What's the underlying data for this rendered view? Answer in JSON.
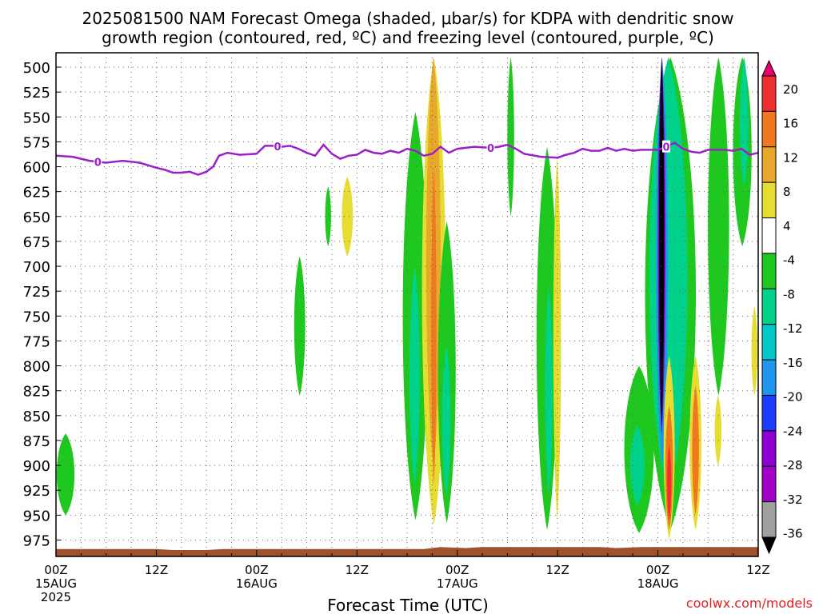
{
  "chart_data": {
    "type": "heatmap",
    "title_line1": "2025081500 NAM Forecast Omega (shaded, μbar/s) for KDPA with dendritic snow",
    "title_line2": "growth region (contoured, red, ºC) and freezing level (contoured, purple, ºC)",
    "xlabel": "Forecast Time (UTC)",
    "ylabel": "",
    "credit": "coolwx.com/models",
    "x_hours_range": [
      0,
      84
    ],
    "y_pressure_range": [
      975,
      500
    ],
    "y_ticks": [
      "500",
      "525",
      "550",
      "575",
      "600",
      "625",
      "650",
      "675",
      "700",
      "725",
      "750",
      "775",
      "800",
      "825",
      "850",
      "875",
      "900",
      "925",
      "950",
      "975"
    ],
    "x_ticks": [
      {
        "hour": 0,
        "label": "00Z",
        "sub": "15AUG",
        "sub2": "2025"
      },
      {
        "hour": 12,
        "label": "12Z",
        "sub": "",
        "sub2": ""
      },
      {
        "hour": 24,
        "label": "00Z",
        "sub": "16AUG",
        "sub2": ""
      },
      {
        "hour": 36,
        "label": "12Z",
        "sub": "",
        "sub2": ""
      },
      {
        "hour": 48,
        "label": "00Z",
        "sub": "17AUG",
        "sub2": ""
      },
      {
        "hour": 60,
        "label": "12Z",
        "sub": "",
        "sub2": ""
      },
      {
        "hour": 72,
        "label": "00Z",
        "sub": "18AUG",
        "sub2": ""
      },
      {
        "hour": 84,
        "label": "12Z",
        "sub": "",
        "sub2": ""
      }
    ],
    "grid": true,
    "colorbar": {
      "labels": [
        "20",
        "16",
        "12",
        "8",
        "4",
        "-4",
        "-8",
        "-12",
        "-16",
        "-20",
        "-24",
        "-28",
        "-32",
        "-36"
      ],
      "colors": [
        "#e8006e",
        "#f03030",
        "#f0781e",
        "#e8a82c",
        "#e6dc32",
        "#ffffff",
        "#1ec81e",
        "#00d28c",
        "#00c8c8",
        "#1e96f0",
        "#1e3cff",
        "#8c00d2",
        "#a000c8",
        "#a0a0a0",
        "#000000"
      ]
    },
    "freezing_level": {
      "label": "0",
      "color": "#9b20c8",
      "points": [
        [
          0,
          589
        ],
        [
          2,
          590
        ],
        [
          4,
          594
        ],
        [
          6,
          596
        ],
        [
          8,
          594
        ],
        [
          10,
          596
        ],
        [
          12,
          601
        ],
        [
          13,
          603
        ],
        [
          14,
          606
        ],
        [
          15,
          606
        ],
        [
          16,
          605
        ],
        [
          17,
          608
        ],
        [
          18,
          605
        ],
        [
          18.8,
          600
        ],
        [
          19.5,
          589
        ],
        [
          20.5,
          586
        ],
        [
          22,
          588
        ],
        [
          24,
          587
        ],
        [
          25,
          579
        ],
        [
          26,
          579
        ],
        [
          27,
          580
        ],
        [
          28,
          579
        ],
        [
          29,
          582
        ],
        [
          30,
          586
        ],
        [
          31,
          589
        ],
        [
          32,
          578
        ],
        [
          33,
          587
        ],
        [
          34,
          592
        ],
        [
          35,
          589
        ],
        [
          36,
          588
        ],
        [
          37,
          583
        ],
        [
          38,
          586
        ],
        [
          39,
          587
        ],
        [
          40,
          584
        ],
        [
          41,
          586
        ],
        [
          42,
          582
        ],
        [
          43,
          584
        ],
        [
          44,
          589
        ],
        [
          45,
          587
        ],
        [
          46,
          580
        ],
        [
          47,
          586
        ],
        [
          48,
          582
        ],
        [
          50,
          580
        ],
        [
          52,
          581
        ],
        [
          53,
          580
        ],
        [
          54,
          578
        ],
        [
          55,
          582
        ],
        [
          56,
          587
        ],
        [
          58,
          590
        ],
        [
          60,
          591
        ],
        [
          61,
          588
        ],
        [
          62,
          586
        ],
        [
          63,
          582
        ],
        [
          64,
          584
        ],
        [
          65,
          584
        ],
        [
          66,
          581
        ],
        [
          67,
          584
        ],
        [
          68,
          582
        ],
        [
          69,
          584
        ],
        [
          70,
          583
        ],
        [
          71,
          583
        ],
        [
          72,
          583
        ],
        [
          73,
          580
        ],
        [
          74,
          576
        ],
        [
          75,
          582
        ],
        [
          76,
          585
        ],
        [
          77,
          586
        ],
        [
          78,
          583
        ],
        [
          80,
          583
        ],
        [
          81,
          584
        ],
        [
          82,
          582
        ],
        [
          83,
          588
        ],
        [
          84,
          586
        ]
      ],
      "label_hours": [
        5,
        26.5,
        52,
        73
      ]
    },
    "shaded_regions": [
      {
        "value": -8,
        "hours": [
          0.1,
          2.2
        ],
        "p_top": 868,
        "p_bot": 950
      },
      {
        "value": -8,
        "hours": [
          28.5,
          29.8
        ],
        "p_top": 690,
        "p_bot": 830
      },
      {
        "value": -8,
        "hours": [
          32.2,
          32.9
        ],
        "p_top": 620,
        "p_bot": 680
      },
      {
        "value": 4,
        "hours": [
          34.2,
          35.5
        ],
        "p_top": 610,
        "p_bot": 690
      },
      {
        "value": -8,
        "hours": [
          41.5,
          44.5
        ],
        "p_top": 545,
        "p_bot": 955
      },
      {
        "value": -12,
        "hours": [
          42.3,
          43.5
        ],
        "p_top": 700,
        "p_bot": 920
      },
      {
        "value": 4,
        "hours": [
          43.8,
          46.6
        ],
        "p_top": 490,
        "p_bot": 960
      },
      {
        "value": 8,
        "hours": [
          44.3,
          46.0
        ],
        "p_top": 490,
        "p_bot": 900
      },
      {
        "value": 12,
        "hours": [
          44.9,
          45.5
        ],
        "p_top": 600,
        "p_bot": 920
      },
      {
        "value": -8,
        "hours": [
          45.7,
          47.8
        ],
        "p_top": 655,
        "p_bot": 958
      },
      {
        "value": -12,
        "hours": [
          46.2,
          47.2
        ],
        "p_top": 780,
        "p_bot": 930
      },
      {
        "value": -8,
        "hours": [
          54.0,
          54.8
        ],
        "p_top": 490,
        "p_bot": 650
      },
      {
        "value": -8,
        "hours": [
          57.5,
          60.0
        ],
        "p_top": 580,
        "p_bot": 965
      },
      {
        "value": -12,
        "hours": [
          58.5,
          59.4
        ],
        "p_top": 720,
        "p_bot": 930
      },
      {
        "value": 4,
        "hours": [
          59.5,
          60.4
        ],
        "p_top": 590,
        "p_bot": 955
      },
      {
        "value": -8,
        "hours": [
          68.0,
          71.5
        ],
        "p_top": 800,
        "p_bot": 968
      },
      {
        "value": -12,
        "hours": [
          68.7,
          70.4
        ],
        "p_top": 860,
        "p_bot": 940
      },
      {
        "value": -8,
        "hours": [
          70.5,
          76.5
        ],
        "p_top": 490,
        "p_bot": 965
      },
      {
        "value": -12,
        "hours": [
          71.0,
          75.5
        ],
        "p_top": 490,
        "p_bot": 930
      },
      {
        "value": -20,
        "hours": [
          71.8,
          73.2
        ],
        "p_top": 490,
        "p_bot": 900
      },
      {
        "value": -28,
        "hours": [
          72.0,
          72.9
        ],
        "p_top": 490,
        "p_bot": 870
      },
      {
        "value": -36,
        "hours": [
          72.15,
          72.75
        ],
        "p_top": 490,
        "p_bot": 860
      },
      {
        "value": 4,
        "hours": [
          72.7,
          74.0
        ],
        "p_top": 790,
        "p_bot": 975
      },
      {
        "value": 12,
        "hours": [
          72.9,
          73.8
        ],
        "p_top": 840,
        "p_bot": 965
      },
      {
        "value": 16,
        "hours": [
          73.1,
          73.6
        ],
        "p_top": 880,
        "p_bot": 955
      },
      {
        "value": 4,
        "hours": [
          75.8,
          77.2
        ],
        "p_top": 790,
        "p_bot": 965
      },
      {
        "value": 12,
        "hours": [
          76.1,
          76.9
        ],
        "p_top": 820,
        "p_bot": 950
      },
      {
        "value": -8,
        "hours": [
          78.0,
          80.5
        ],
        "p_top": 490,
        "p_bot": 830
      },
      {
        "value": 4,
        "hours": [
          78.8,
          79.6
        ],
        "p_top": 830,
        "p_bot": 900
      },
      {
        "value": -8,
        "hours": [
          81.0,
          83.2
        ],
        "p_top": 490,
        "p_bot": 680
      },
      {
        "value": -12,
        "hours": [
          81.8,
          82.8
        ],
        "p_top": 490,
        "p_bot": 620
      },
      {
        "value": 4,
        "hours": [
          83.2,
          83.9
        ],
        "p_top": 740,
        "p_bot": 830
      }
    ],
    "terrain": {
      "color": "#a0522d",
      "points": [
        [
          0,
          984
        ],
        [
          12,
          984
        ],
        [
          14,
          985
        ],
        [
          18,
          985
        ],
        [
          20,
          984
        ],
        [
          44,
          984
        ],
        [
          45,
          983
        ],
        [
          46,
          982
        ],
        [
          49,
          983
        ],
        [
          51,
          982
        ],
        [
          65,
          982
        ],
        [
          67,
          983
        ],
        [
          70,
          982
        ],
        [
          84,
          982
        ]
      ]
    }
  }
}
